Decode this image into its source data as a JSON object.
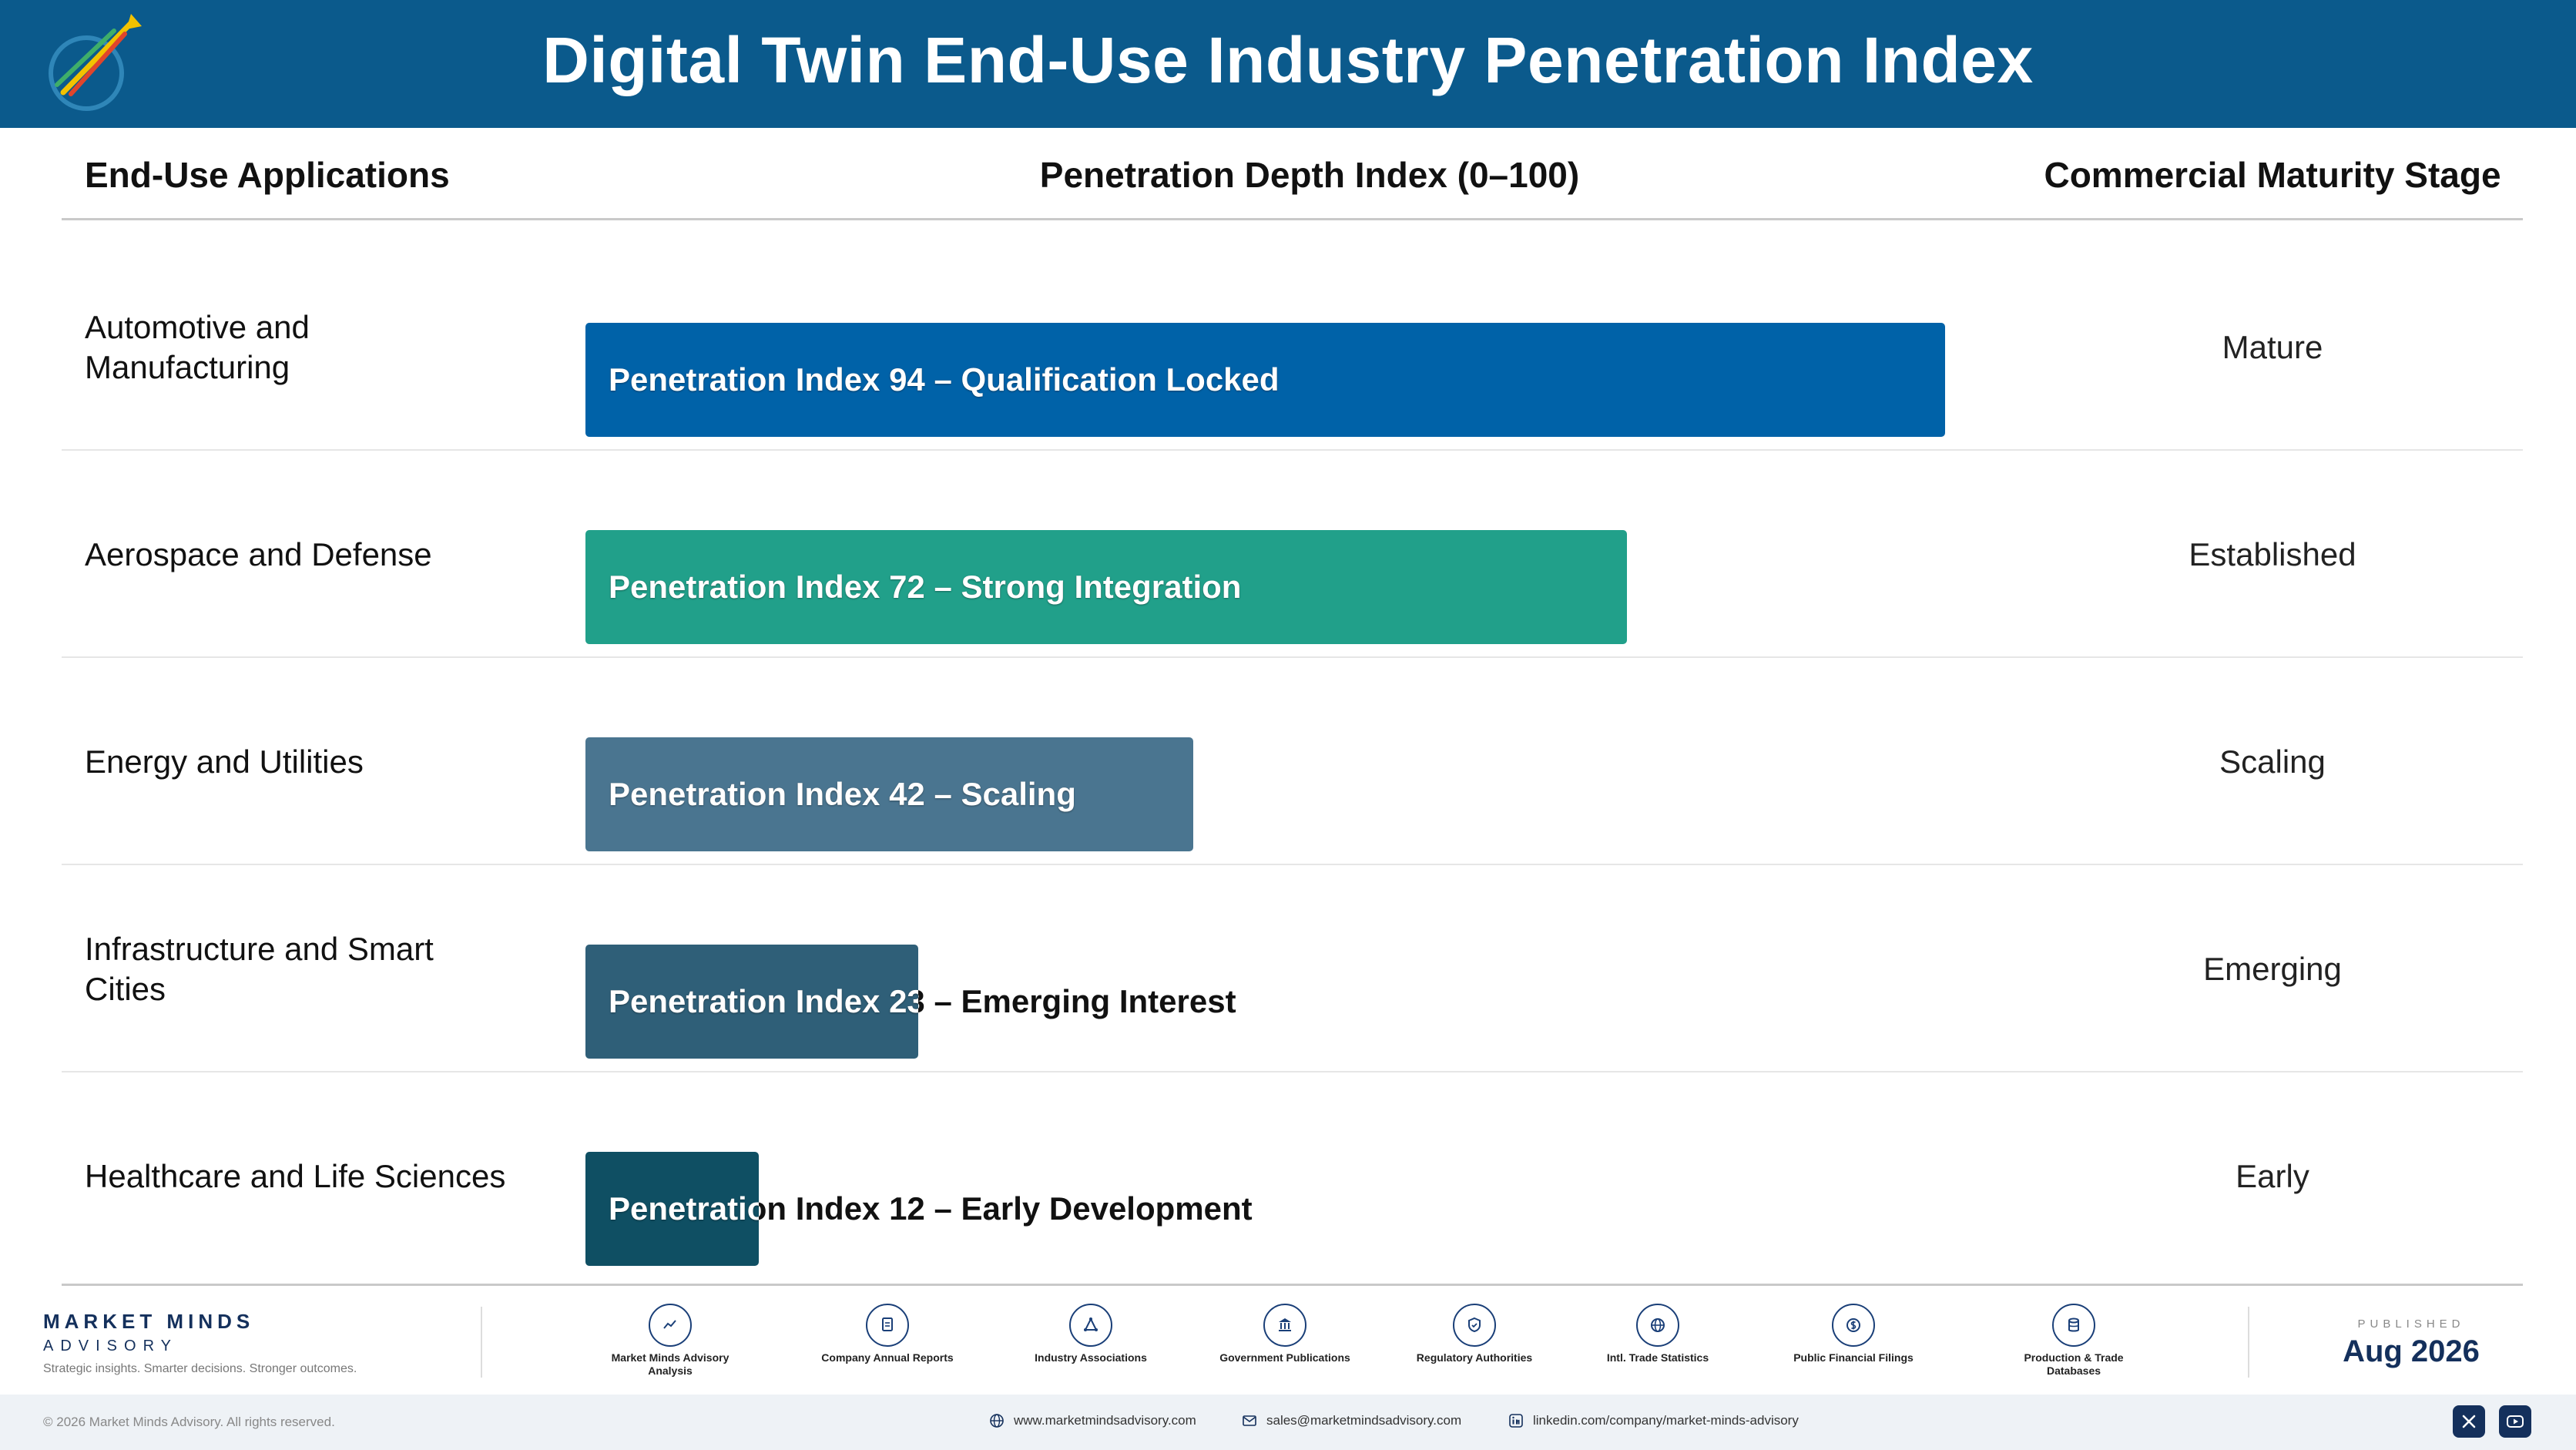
{
  "header": {
    "title": "Digital Twin End-Use Industry Penetration Index"
  },
  "columns": {
    "applications": "End-Use Applications",
    "index": "Penetration Depth Index (0–100)",
    "stage": "Commercial Maturity Stage"
  },
  "chart_data": {
    "type": "bar",
    "orientation": "horizontal",
    "title": "Digital Twin End-Use Industry Penetration Index",
    "xlabel": "Penetration Depth Index (0–100)",
    "xlim": [
      0,
      100
    ],
    "grid": false,
    "categories": [
      "Automotive and Manufacturing",
      "Aerospace and Defense",
      "Energy and Utilities",
      "Infrastructure and Smart Cities",
      "Healthcare and Life Sciences"
    ],
    "values": [
      94,
      72,
      42,
      23,
      12
    ],
    "bar_labels": [
      "Penetration Index 94 – Qualification Locked",
      "Penetration Index 72 – Strong Integration",
      "Penetration Index 42 – Scaling",
      "Penetration Index 23 – Emerging Interest",
      "Penetration Index 12 – Early Development"
    ],
    "stages": [
      "Mature",
      "Established",
      "Scaling",
      "Emerging",
      "Early"
    ],
    "colors": [
      "#0062a8",
      "#21a08a",
      "#4a7590",
      "#2f5f78",
      "#0f4f63"
    ]
  },
  "footer": {
    "brand": "MARKET MINDS",
    "brand_sub": "ADVISORY",
    "tagline": "Strategic insights. Smarter decisions. Stronger outcomes.",
    "sources": [
      {
        "icon": "trend-chart-icon",
        "label": "Market Minds Advisory Analysis"
      },
      {
        "icon": "document-icon",
        "label": "Company Annual Reports"
      },
      {
        "icon": "network-icon",
        "label": "Industry Associations"
      },
      {
        "icon": "government-building-icon",
        "label": "Government Publications"
      },
      {
        "icon": "shield-icon",
        "label": "Regulatory Authorities"
      },
      {
        "icon": "globe-icon",
        "label": "Intl. Trade Statistics"
      },
      {
        "icon": "dollar-coin-icon",
        "label": "Public Financial Filings"
      },
      {
        "icon": "database-icon",
        "label": "Production & Trade Databases"
      }
    ],
    "published_label": "PUBLISHED",
    "published_date": "Aug 2026",
    "copyright": "© 2026 Market Minds Advisory. All rights reserved.",
    "website": "www.marketmindsadvisory.com",
    "email": "sales@marketmindsadvisory.com",
    "linkedin": "linkedin.com/company/market-minds-advisory"
  }
}
